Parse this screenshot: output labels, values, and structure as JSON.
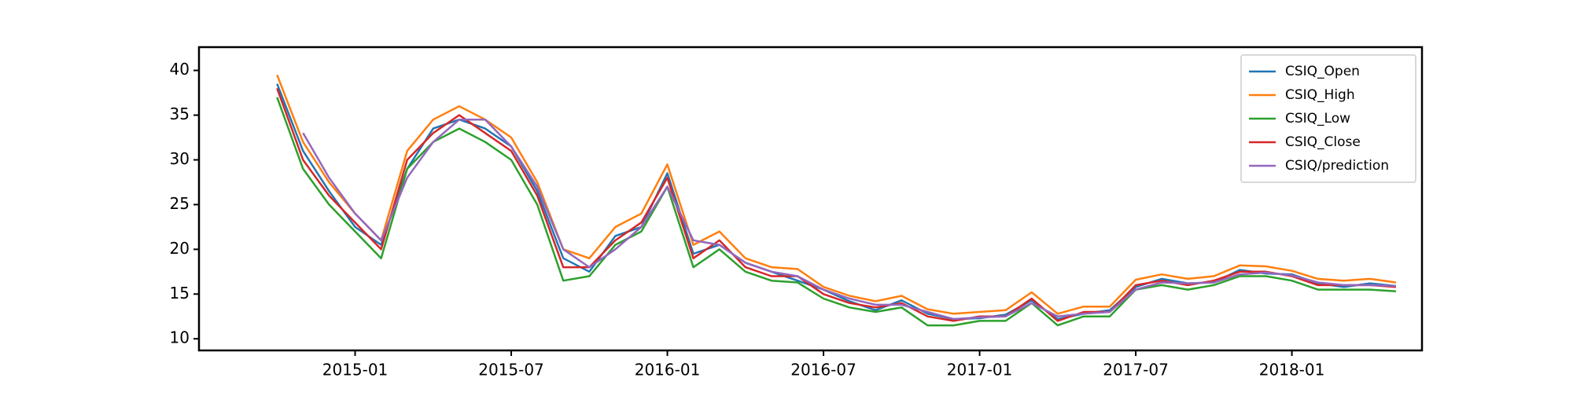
{
  "chart_data": {
    "type": "line",
    "x": [
      "2014-10",
      "2014-11",
      "2014-12",
      "2015-01",
      "2015-02",
      "2015-03",
      "2015-04",
      "2015-05",
      "2015-06",
      "2015-07",
      "2015-08",
      "2015-09",
      "2015-10",
      "2015-11",
      "2015-12",
      "2016-01",
      "2016-02",
      "2016-03",
      "2016-04",
      "2016-05",
      "2016-06",
      "2016-07",
      "2016-08",
      "2016-09",
      "2016-10",
      "2016-11",
      "2016-12",
      "2017-01",
      "2017-02",
      "2017-03",
      "2017-04",
      "2017-05",
      "2017-06",
      "2017-07",
      "2017-08",
      "2017-09",
      "2017-10",
      "2017-11",
      "2017-12",
      "2018-01",
      "2018-02",
      "2018-03",
      "2018-04",
      "2018-05"
    ],
    "series": [
      {
        "name": "CSIQ_Open",
        "color": "#1f77b4",
        "values": [
          38.5,
          31,
          26.5,
          22.5,
          20.5,
          29,
          33.5,
          34.5,
          33.5,
          31.5,
          26.5,
          19,
          17.5,
          21.5,
          22.5,
          28.5,
          19.5,
          20.5,
          18.5,
          17.5,
          16.5,
          15.5,
          14.2,
          13.2,
          14.3,
          12.8,
          12.2,
          12.3,
          12.7,
          14.3,
          12.2,
          12.8,
          13.2,
          15.8,
          16.7,
          16.2,
          16.3,
          17.7,
          17.3,
          17.2,
          16.2,
          15.8,
          16.2,
          15.9
        ]
      },
      {
        "name": "CSIQ_High",
        "color": "#ff7f0e",
        "values": [
          39.5,
          32,
          27.5,
          24,
          21,
          31,
          34.5,
          36,
          34.5,
          32.5,
          27.5,
          20,
          19,
          22.5,
          24,
          29.5,
          20.5,
          22,
          19,
          18,
          17.8,
          15.8,
          14.8,
          14.2,
          14.8,
          13.3,
          12.8,
          13,
          13.2,
          15.2,
          12.8,
          13.6,
          13.6,
          16.6,
          17.2,
          16.7,
          17,
          18.2,
          18.1,
          17.6,
          16.7,
          16.5,
          16.7,
          16.3
        ]
      },
      {
        "name": "CSIQ_Low",
        "color": "#2ca02c",
        "values": [
          37,
          29,
          25,
          22,
          19,
          29,
          32,
          33.5,
          32,
          30,
          25,
          16.5,
          17,
          20.5,
          22,
          27,
          18,
          20,
          17.5,
          16.5,
          16.3,
          14.5,
          13.5,
          13,
          13.5,
          11.5,
          11.5,
          12,
          12,
          14,
          11.5,
          12.5,
          12.5,
          15.5,
          16,
          15.5,
          16,
          17,
          17,
          16.5,
          15.5,
          15.5,
          15.5,
          15.3
        ]
      },
      {
        "name": "CSIQ_Close",
        "color": "#d62728",
        "values": [
          38,
          30,
          26,
          23,
          20,
          30,
          33,
          35,
          33,
          31,
          26,
          18,
          18,
          21,
          23,
          28,
          19,
          21,
          18,
          17,
          17,
          15,
          14,
          13.5,
          14,
          12.5,
          12,
          12.5,
          12.5,
          14.5,
          12,
          13,
          13,
          16,
          16.5,
          16,
          16.5,
          17.5,
          17.5,
          17,
          16,
          16,
          16,
          15.8
        ]
      },
      {
        "name": "CSIQ/prediction",
        "color": "#9467bd",
        "values": [
          null,
          33,
          28,
          24,
          21,
          28,
          32,
          34.5,
          34.5,
          31.5,
          27,
          20,
          18,
          20,
          22.5,
          27,
          21,
          20.5,
          18.5,
          17.5,
          17,
          15.5,
          14.5,
          13.8,
          13.8,
          13,
          12.2,
          12.4,
          12.5,
          14,
          12.5,
          12.8,
          13,
          15.5,
          16.3,
          16.2,
          16.3,
          17.2,
          17.4,
          17.1,
          16.3,
          16,
          16,
          15.9
        ]
      }
    ],
    "xlim": [
      "2014-07",
      "2018-06"
    ],
    "xticks": [
      "2015-01",
      "2015-07",
      "2016-01",
      "2016-07",
      "2017-01",
      "2017-07",
      "2018-01"
    ],
    "ylim": [
      8.7,
      42.6
    ],
    "yticks": [
      10,
      15,
      20,
      25,
      30,
      35,
      40
    ],
    "legend": "upper right"
  }
}
